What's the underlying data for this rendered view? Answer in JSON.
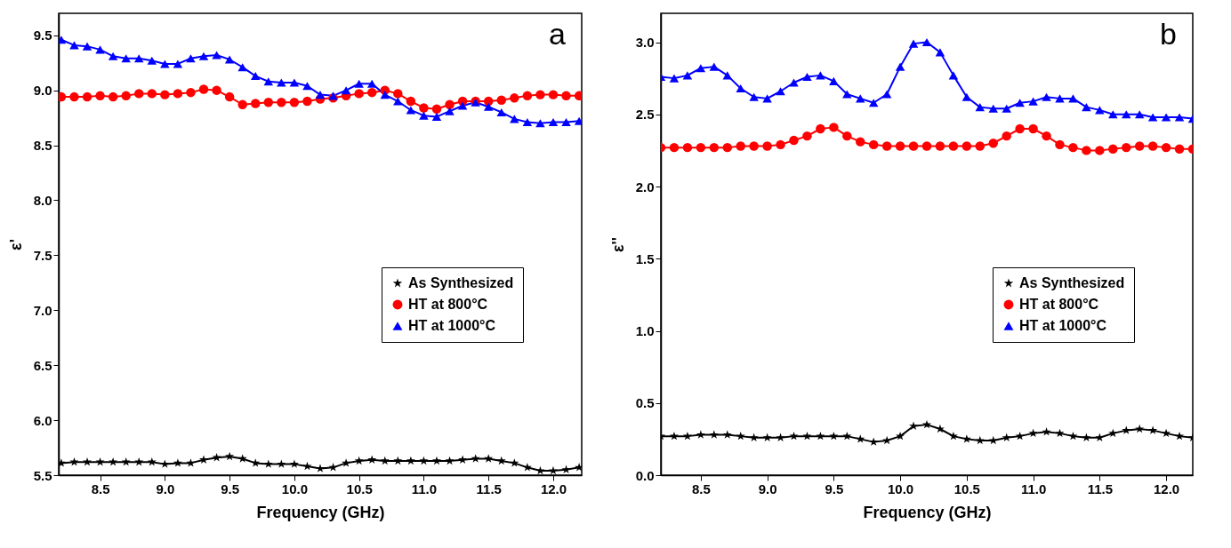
{
  "chart_data": [
    {
      "type": "line",
      "xlabel": "Frequency (GHz)",
      "ylabel": "ε'",
      "annotations": [
        "a"
      ],
      "legend": "right",
      "grid": false,
      "line_style": "solid",
      "xlim": [
        8.18,
        12.22
      ],
      "xticks": [
        8.5,
        {
          "value": 9,
          "label": "9.0"
        },
        9.5,
        {
          "value": 10,
          "label": "10.0"
        },
        10.5,
        {
          "value": 11,
          "label": "11.0"
        },
        11.5,
        {
          "value": 12,
          "label": "12.0"
        }
      ],
      "ylim": [
        5.5,
        9.7
      ],
      "yticks": [
        5.5,
        {
          "value": 6,
          "label": "6.0"
        },
        6.5,
        {
          "value": 7,
          "label": "7.0"
        },
        7.5,
        {
          "value": 8,
          "label": "8.0"
        },
        8.5,
        {
          "value": 9,
          "label": "9.0"
        },
        9.5
      ],
      "x": [
        8.2,
        8.3,
        8.4,
        8.5,
        8.6,
        8.7,
        8.8,
        8.9,
        9.0,
        9.1,
        9.2,
        9.3,
        9.4,
        9.5,
        9.6,
        9.7,
        9.8,
        9.9,
        10.0,
        10.1,
        10.2,
        10.3,
        10.4,
        10.5,
        10.6,
        10.7,
        10.8,
        10.9,
        11.0,
        11.1,
        11.2,
        11.3,
        11.4,
        11.5,
        11.6,
        11.7,
        11.8,
        11.9,
        12.0,
        12.1,
        12.2
      ],
      "series": [
        {
          "name": "As Synthesized",
          "color": "#000000",
          "marker": "star",
          "values": [
            5.61,
            5.62,
            5.62,
            5.62,
            5.62,
            5.62,
            5.62,
            5.62,
            5.6,
            5.61,
            5.61,
            5.64,
            5.66,
            5.67,
            5.65,
            5.61,
            5.6,
            5.6,
            5.6,
            5.58,
            5.56,
            5.57,
            5.61,
            5.63,
            5.64,
            5.63,
            5.63,
            5.63,
            5.63,
            5.63,
            5.63,
            5.64,
            5.65,
            5.65,
            5.63,
            5.61,
            5.57,
            5.54,
            5.54,
            5.55,
            5.57
          ]
        },
        {
          "name": "HT at 800°C",
          "color": "#ff0000",
          "marker": "circle",
          "values": [
            8.94,
            8.94,
            8.94,
            8.95,
            8.94,
            8.95,
            8.97,
            8.97,
            8.96,
            8.97,
            8.98,
            9.01,
            9.0,
            8.94,
            8.87,
            8.88,
            8.89,
            8.89,
            8.89,
            8.9,
            8.92,
            8.93,
            8.95,
            8.97,
            8.98,
            9.0,
            8.97,
            8.9,
            8.84,
            8.83,
            8.87,
            8.9,
            8.9,
            8.9,
            8.91,
            8.93,
            8.95,
            8.96,
            8.96,
            8.95,
            8.95
          ]
        },
        {
          "name": "HT at 1000°C",
          "color": "#0000ff",
          "marker": "triangle",
          "values": [
            9.46,
            9.41,
            9.4,
            9.37,
            9.31,
            9.29,
            9.29,
            9.27,
            9.24,
            9.24,
            9.29,
            9.31,
            9.32,
            9.28,
            9.21,
            9.13,
            9.08,
            9.07,
            9.07,
            9.04,
            8.96,
            8.95,
            9.0,
            9.06,
            9.06,
            8.96,
            8.9,
            8.82,
            8.77,
            8.76,
            8.81,
            8.86,
            8.89,
            8.85,
            8.8,
            8.74,
            8.71,
            8.7,
            8.71,
            8.71,
            8.72
          ]
        }
      ]
    },
    {
      "type": "line",
      "xlabel": "Frequency (GHz)",
      "ylabel": "ε''",
      "annotations": [
        "b"
      ],
      "legend": "right",
      "grid": false,
      "line_style": "solid",
      "xlim": [
        8.2,
        12.2
      ],
      "xticks": [
        8.5,
        {
          "value": 9,
          "label": "9.0"
        },
        9.5,
        {
          "value": 10,
          "label": "10.0"
        },
        10.5,
        {
          "value": 11,
          "label": "11.0"
        },
        11.5,
        {
          "value": 12,
          "label": "12.0"
        }
      ],
      "ylim": [
        0,
        3.2
      ],
      "yticks": [
        {
          "value": 0,
          "label": "0.0"
        },
        0.5,
        {
          "value": 1,
          "label": "1.0"
        },
        1.5,
        {
          "value": 2,
          "label": "2.0"
        },
        2.5,
        {
          "value": 3,
          "label": "3.0"
        }
      ],
      "x": [
        8.2,
        8.3,
        8.4,
        8.5,
        8.6,
        8.7,
        8.8,
        8.9,
        9.0,
        9.1,
        9.2,
        9.3,
        9.4,
        9.5,
        9.6,
        9.7,
        9.8,
        9.9,
        10.0,
        10.1,
        10.2,
        10.3,
        10.4,
        10.5,
        10.6,
        10.7,
        10.8,
        10.9,
        11.0,
        11.1,
        11.2,
        11.3,
        11.4,
        11.5,
        11.6,
        11.7,
        11.8,
        11.9,
        12.0,
        12.1,
        12.2
      ],
      "series": [
        {
          "name": "As Synthesized",
          "color": "#000000",
          "marker": "star",
          "values": [
            0.27,
            0.27,
            0.27,
            0.28,
            0.28,
            0.28,
            0.27,
            0.26,
            0.26,
            0.26,
            0.27,
            0.27,
            0.27,
            0.27,
            0.27,
            0.25,
            0.23,
            0.24,
            0.27,
            0.34,
            0.35,
            0.32,
            0.27,
            0.25,
            0.24,
            0.24,
            0.26,
            0.27,
            0.29,
            0.3,
            0.29,
            0.27,
            0.26,
            0.26,
            0.29,
            0.31,
            0.32,
            0.31,
            0.29,
            0.27,
            0.26
          ]
        },
        {
          "name": "HT at 800°C",
          "color": "#ff0000",
          "marker": "circle",
          "values": [
            2.27,
            2.27,
            2.27,
            2.27,
            2.27,
            2.27,
            2.28,
            2.28,
            2.28,
            2.29,
            2.32,
            2.35,
            2.4,
            2.41,
            2.35,
            2.31,
            2.29,
            2.28,
            2.28,
            2.28,
            2.28,
            2.28,
            2.28,
            2.28,
            2.28,
            2.3,
            2.35,
            2.4,
            2.4,
            2.35,
            2.29,
            2.27,
            2.25,
            2.25,
            2.26,
            2.27,
            2.28,
            2.28,
            2.27,
            2.26,
            2.26
          ]
        },
        {
          "name": "HT at 1000°C",
          "color": "#0000ff",
          "marker": "triangle",
          "values": [
            2.76,
            2.75,
            2.77,
            2.82,
            2.83,
            2.77,
            2.68,
            2.62,
            2.61,
            2.66,
            2.72,
            2.76,
            2.77,
            2.73,
            2.64,
            2.61,
            2.58,
            2.64,
            2.83,
            2.99,
            3.0,
            2.93,
            2.77,
            2.62,
            2.55,
            2.54,
            2.54,
            2.58,
            2.59,
            2.62,
            2.61,
            2.61,
            2.55,
            2.53,
            2.5,
            2.5,
            2.5,
            2.48,
            2.48,
            2.48,
            2.47
          ]
        }
      ]
    }
  ]
}
